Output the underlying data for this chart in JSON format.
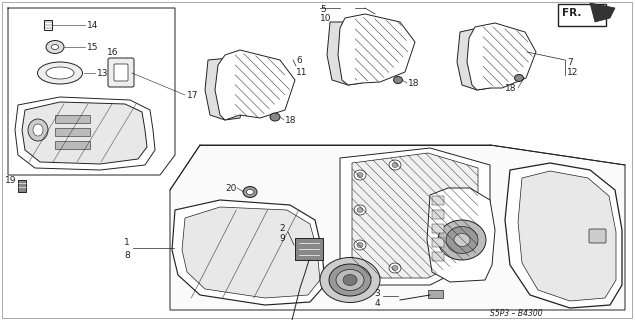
{
  "bg_color": "#ffffff",
  "fig_width": 6.35,
  "fig_height": 3.2,
  "dpi": 100,
  "diagram_code_label": "S5P3 – B4300",
  "fr_label": "FR.",
  "line_color": "#222222",
  "hatch_color": "#555555"
}
